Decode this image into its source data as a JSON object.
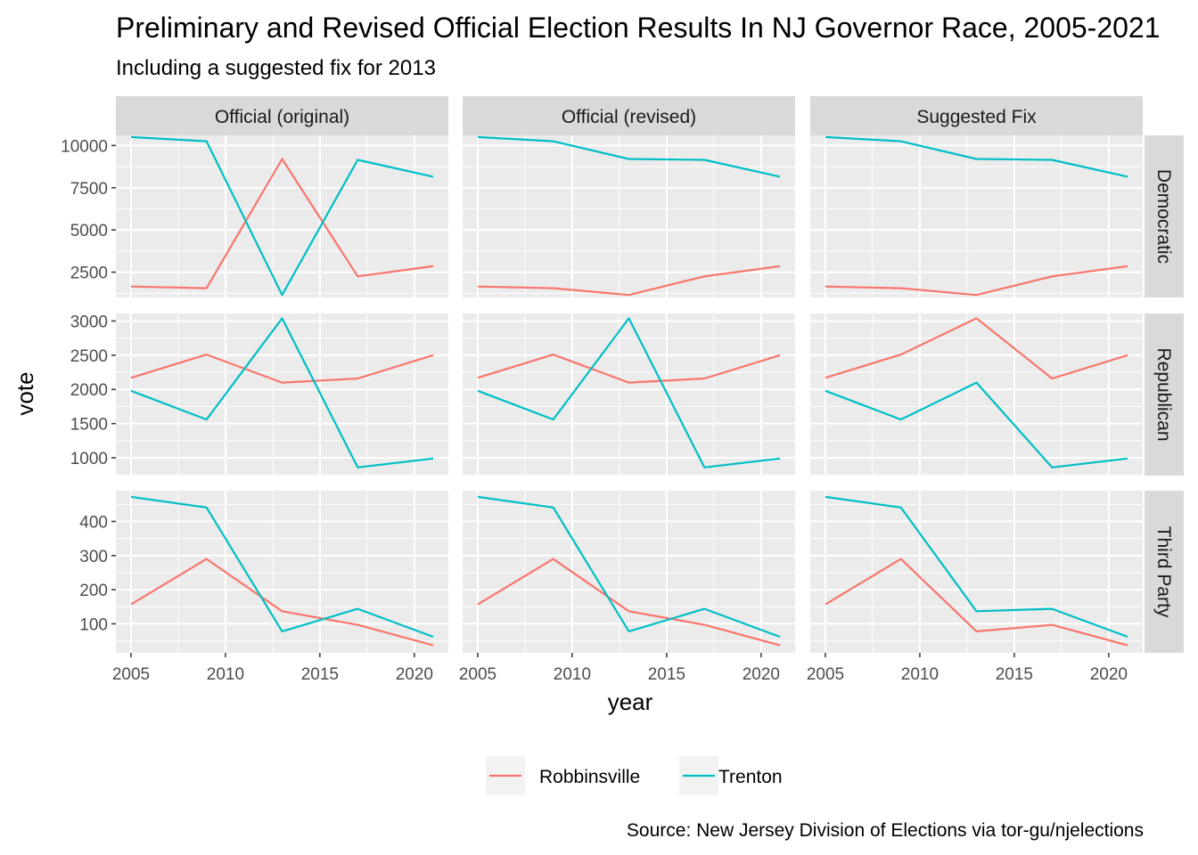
{
  "chart_data": {
    "type": "line",
    "title": "Preliminary and Revised Official Election Results In NJ Governor Race, 2005-2021",
    "subtitle": "Including a suggested fix for 2013",
    "xlabel": "year",
    "ylabel": "vote",
    "caption": "Source: New Jersey Division of Elections via tor-gu/njelections",
    "x": [
      2005,
      2009,
      2013,
      2017,
      2021
    ],
    "x_ticks": [
      2005,
      2010,
      2015,
      2020
    ],
    "xlim": [
      2004.2,
      2021.8
    ],
    "legend_position": "bottom",
    "colors": {
      "Robbinsville": "#F8766D",
      "Trenton": "#00BFC4"
    },
    "columns": [
      "Official (original)",
      "Official (revised)",
      "Suggested Fix"
    ],
    "rows": [
      {
        "name": "Democratic",
        "ylim": [
          1000,
          10600
        ],
        "y_ticks": [
          2500,
          5000,
          7500,
          10000
        ],
        "y_tick_labels": [
          "2500",
          "5000",
          "7500",
          "10000"
        ]
      },
      {
        "name": "Republican",
        "ylim": [
          740,
          3110
        ],
        "y_ticks": [
          1000,
          1500,
          2000,
          2500,
          3000
        ],
        "y_tick_labels": [
          "1000",
          "1500",
          "2000",
          "2500",
          "3000"
        ]
      },
      {
        "name": "Third Party",
        "ylim": [
          15,
          490
        ],
        "y_ticks": [
          100,
          200,
          300,
          400
        ],
        "y_tick_labels": [
          "100",
          "200",
          "300",
          "400"
        ]
      }
    ],
    "legend": [
      "Robbinsville",
      "Trenton"
    ],
    "panels": [
      {
        "column": "Official (original)",
        "row": "Democratic",
        "series": [
          {
            "name": "Robbinsville",
            "values": [
              1650,
              1550,
              9200,
              2250,
              2850
            ]
          },
          {
            "name": "Trenton",
            "values": [
              10500,
              10250,
              1150,
              9150,
              8150
            ]
          }
        ]
      },
      {
        "column": "Official (revised)",
        "row": "Democratic",
        "series": [
          {
            "name": "Robbinsville",
            "values": [
              1650,
              1550,
              1150,
              2250,
              2850
            ]
          },
          {
            "name": "Trenton",
            "values": [
              10500,
              10250,
              9200,
              9150,
              8150
            ]
          }
        ]
      },
      {
        "column": "Suggested Fix",
        "row": "Democratic",
        "series": [
          {
            "name": "Robbinsville",
            "values": [
              1650,
              1550,
              1150,
              2250,
              2850
            ]
          },
          {
            "name": "Trenton",
            "values": [
              10500,
              10250,
              9200,
              9150,
              8150
            ]
          }
        ]
      },
      {
        "column": "Official (original)",
        "row": "Republican",
        "series": [
          {
            "name": "Robbinsville",
            "values": [
              2170,
              2510,
              2100,
              2160,
              2500
            ]
          },
          {
            "name": "Trenton",
            "values": [
              1980,
              1560,
              3040,
              860,
              990
            ]
          }
        ]
      },
      {
        "column": "Official (revised)",
        "row": "Republican",
        "series": [
          {
            "name": "Robbinsville",
            "values": [
              2170,
              2510,
              2100,
              2160,
              2500
            ]
          },
          {
            "name": "Trenton",
            "values": [
              1980,
              1560,
              3040,
              860,
              990
            ]
          }
        ]
      },
      {
        "column": "Suggested Fix",
        "row": "Republican",
        "series": [
          {
            "name": "Robbinsville",
            "values": [
              2170,
              2510,
              3040,
              2160,
              2500
            ]
          },
          {
            "name": "Trenton",
            "values": [
              1980,
              1560,
              2100,
              860,
              990
            ]
          }
        ]
      },
      {
        "column": "Official (original)",
        "row": "Third Party",
        "series": [
          {
            "name": "Robbinsville",
            "values": [
              157,
              290,
              137,
              97,
              37
            ]
          },
          {
            "name": "Trenton",
            "values": [
              472,
              441,
              78,
              144,
              62
            ]
          }
        ]
      },
      {
        "column": "Official (revised)",
        "row": "Third Party",
        "series": [
          {
            "name": "Robbinsville",
            "values": [
              157,
              290,
              137,
              97,
              37
            ]
          },
          {
            "name": "Trenton",
            "values": [
              472,
              441,
              78,
              144,
              62
            ]
          }
        ]
      },
      {
        "column": "Suggested Fix",
        "row": "Third Party",
        "series": [
          {
            "name": "Robbinsville",
            "values": [
              157,
              290,
              78,
              97,
              37
            ]
          },
          {
            "name": "Trenton",
            "values": [
              472,
              441,
              137,
              144,
              62
            ]
          }
        ]
      }
    ]
  }
}
